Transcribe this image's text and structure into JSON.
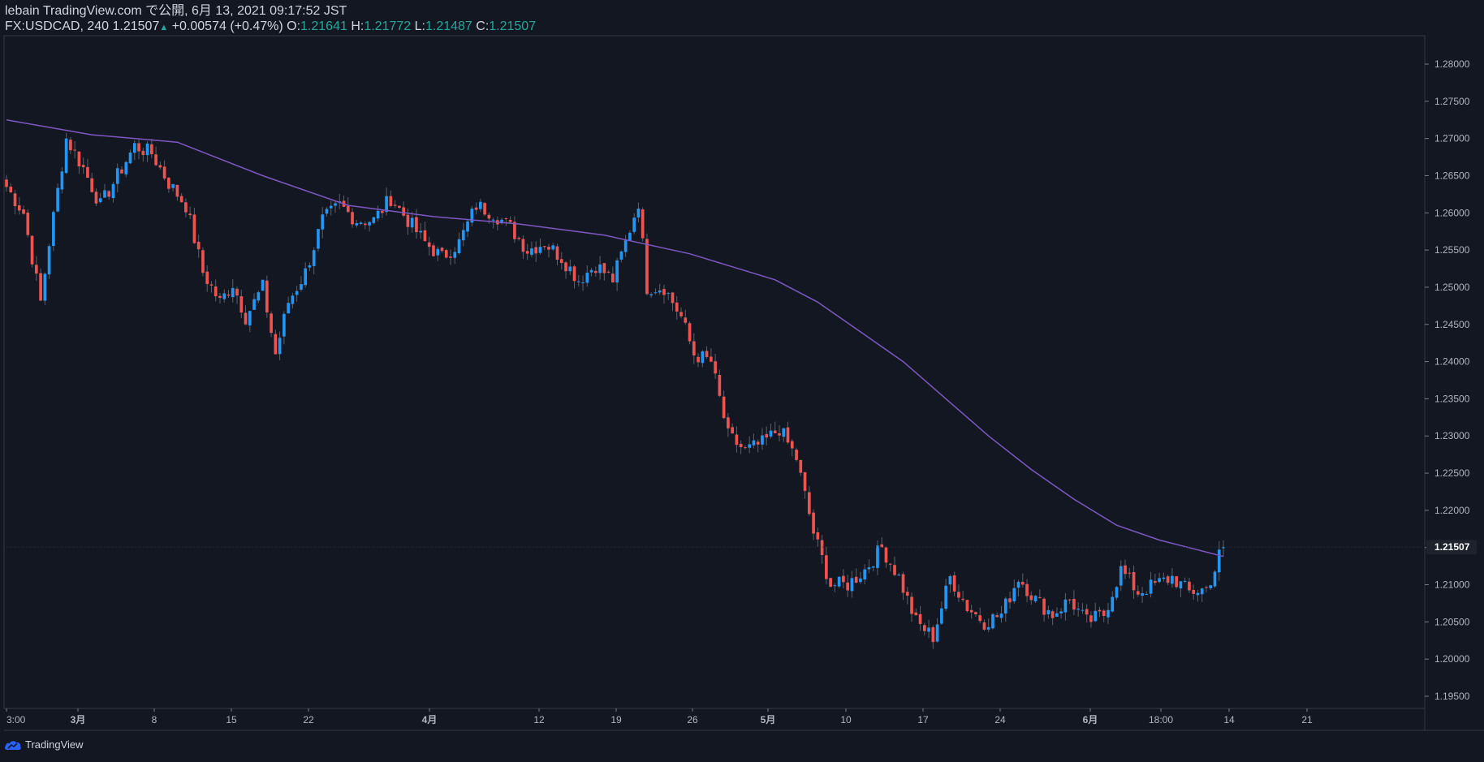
{
  "header": {
    "line1": "lebain TradingView.com で公開, 6月 13, 2021 09:17:52 JST",
    "symbol": "FX:USDCAD, 240",
    "last": "1.21507",
    "change": "+0.00574 (+0.47%)",
    "o_label": "O:",
    "o_value": "1.21641",
    "h_label": "H:",
    "h_value": "1.21772",
    "l_label": "L:",
    "l_value": "1.21487",
    "c_label": "C:",
    "c_value": "1.21507"
  },
  "footer": {
    "brand": "TradingView"
  },
  "colors": {
    "background": "#131722",
    "up": "#2196f3",
    "down": "#ef5350",
    "ma": "#7e57c2",
    "axis": "#787b86",
    "text": "#d1d4dc",
    "ohlc": "#26a69a"
  },
  "chart_data": {
    "type": "candlestick",
    "symbol": "FX:USDCAD",
    "interval": "240",
    "ylim": [
      1.1925,
      1.2835
    ],
    "y_ticks": [
      "1.28000",
      "1.27500",
      "1.27000",
      "1.26500",
      "1.26000",
      "1.25500",
      "1.25000",
      "1.24500",
      "1.24000",
      "1.23500",
      "1.23000",
      "1.22500",
      "1.22000",
      "1.21500",
      "1.21000",
      "1.20500",
      "1.20000",
      "1.19500"
    ],
    "last_price_label": "1.21507",
    "last_price": 1.21507,
    "x_ticks": [
      "3:00",
      "3月",
      "8",
      "15",
      "22",
      "4月",
      "12",
      "19",
      "26",
      "5月",
      "10",
      "17",
      "24",
      "6月",
      "18:00",
      "14",
      "21"
    ],
    "x_tick_bold": [
      "3月",
      "4月",
      "5月",
      "6月"
    ],
    "close_path": [
      [
        0,
        1.2635
      ],
      [
        4,
        1.26
      ],
      [
        8,
        1.248
      ],
      [
        10,
        1.256
      ],
      [
        14,
        1.27
      ],
      [
        18,
        1.266
      ],
      [
        22,
        1.261
      ],
      [
        26,
        1.265
      ],
      [
        30,
        1.269
      ],
      [
        34,
        1.268
      ],
      [
        38,
        1.264
      ],
      [
        42,
        1.261
      ],
      [
        46,
        1.252
      ],
      [
        50,
        1.248
      ],
      [
        53,
        1.2505
      ],
      [
        56,
        1.246
      ],
      [
        60,
        1.25
      ],
      [
        63,
        1.241
      ],
      [
        66,
        1.248
      ],
      [
        70,
        1.252
      ],
      [
        74,
        1.259
      ],
      [
        78,
        1.261
      ],
      [
        82,
        1.259
      ],
      [
        86,
        1.259
      ],
      [
        90,
        1.262
      ],
      [
        94,
        1.259
      ],
      [
        98,
        1.256
      ],
      [
        102,
        1.254
      ],
      [
        106,
        1.256
      ],
      [
        110,
        1.261
      ],
      [
        114,
        1.26
      ],
      [
        118,
        1.258
      ],
      [
        122,
        1.255
      ],
      [
        126,
        1.256
      ],
      [
        130,
        1.254
      ],
      [
        134,
        1.251
      ],
      [
        138,
        1.253
      ],
      [
        142,
        1.251
      ],
      [
        145,
        1.256
      ],
      [
        148,
        1.2615
      ],
      [
        150,
        1.25
      ],
      [
        154,
        1.25
      ],
      [
        158,
        1.246
      ],
      [
        161,
        1.241
      ],
      [
        165,
        1.24
      ],
      [
        169,
        1.23
      ],
      [
        173,
        1.228
      ],
      [
        177,
        1.229
      ],
      [
        181,
        1.231
      ],
      [
        185,
        1.227
      ],
      [
        189,
        1.217
      ],
      [
        193,
        1.21
      ],
      [
        197,
        1.21
      ],
      [
        201,
        1.212
      ],
      [
        205,
        1.215
      ],
      [
        209,
        1.211
      ],
      [
        213,
        1.205
      ],
      [
        217,
        1.203
      ],
      [
        221,
        1.211
      ],
      [
        225,
        1.207
      ],
      [
        229,
        1.205
      ],
      [
        233,
        1.206
      ],
      [
        237,
        1.211
      ],
      [
        241,
        1.208
      ],
      [
        245,
        1.206
      ],
      [
        249,
        1.208
      ],
      [
        253,
        1.205
      ],
      [
        257,
        1.206
      ],
      [
        261,
        1.212
      ],
      [
        265,
        1.209
      ],
      [
        269,
        1.21
      ],
      [
        273,
        1.211
      ],
      [
        277,
        1.209
      ],
      [
        281,
        1.2095
      ],
      [
        283,
        1.212
      ],
      [
        285,
        1.216
      ]
    ],
    "ma_path": [
      [
        0,
        1.2725
      ],
      [
        20,
        1.2705
      ],
      [
        40,
        1.2695
      ],
      [
        60,
        1.265
      ],
      [
        80,
        1.261
      ],
      [
        100,
        1.2595
      ],
      [
        120,
        1.2585
      ],
      [
        140,
        1.257
      ],
      [
        160,
        1.2545
      ],
      [
        180,
        1.251
      ],
      [
        190,
        1.248
      ],
      [
        200,
        1.244
      ],
      [
        210,
        1.24
      ],
      [
        220,
        1.235
      ],
      [
        230,
        1.23
      ],
      [
        240,
        1.2255
      ],
      [
        250,
        1.2215
      ],
      [
        260,
        1.218
      ],
      [
        270,
        1.216
      ],
      [
        285,
        1.2138
      ]
    ],
    "bars_total": 286
  }
}
